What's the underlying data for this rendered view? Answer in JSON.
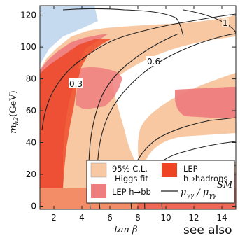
{
  "chart_data": {
    "type": "contour",
    "xlabel": "tan β",
    "ylabel": "m_{h2} (GeV)",
    "xlim": [
      1,
      15
    ],
    "ylim": [
      -2,
      126
    ],
    "x_ticks": [
      2,
      4,
      6,
      8,
      10,
      12,
      14
    ],
    "y_ticks": [
      0,
      20,
      40,
      60,
      80,
      100,
      120
    ],
    "regions": [
      {
        "name": "95% C.L. Higgs fit",
        "color": "#f8c8a2"
      },
      {
        "name": "LEP h→bb",
        "color": "#ee7e7e"
      },
      {
        "name": "LEP h→hadrons",
        "color": "#ee4422"
      },
      {
        "name": "excluded corner",
        "color": "#c5d9ef"
      }
    ],
    "contours": [
      {
        "level": "0.3",
        "label": "0.3"
      },
      {
        "level": "0.6",
        "label": "0.6"
      },
      {
        "level": "1",
        "label": "1"
      }
    ],
    "legend": {
      "position": "bottom-right",
      "items": [
        {
          "label1": "95% C.L.",
          "label2": "Higgs fit",
          "color": "#f8c8a2"
        },
        {
          "label1": "LEP",
          "label2": "h→hadrons",
          "color": "#ee4422"
        },
        {
          "label1": "LEP h→bb",
          "label2": "",
          "color": "#ee7e7e"
        },
        {
          "label1": "— μγγ / μγγ",
          "label2": "SM",
          "color": "#222222"
        }
      ]
    }
  },
  "annotation": "see also"
}
